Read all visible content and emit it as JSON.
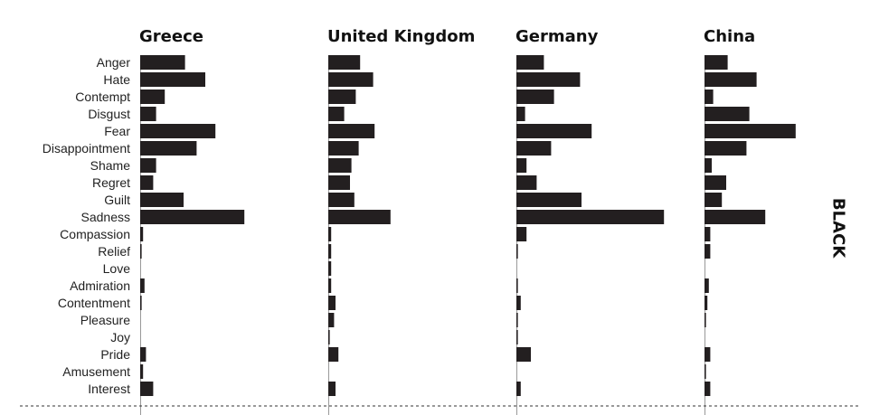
{
  "chart_data": {
    "type": "bar",
    "orientation": "horizontal",
    "side_label": "BLACK",
    "categories": [
      "Anger",
      "Hate",
      "Contempt",
      "Disgust",
      "Fear",
      "Disappointment",
      "Shame",
      "Regret",
      "Guilt",
      "Sadness",
      "Compassion",
      "Relief",
      "Love",
      "Admiration",
      "Contentment",
      "Pleasure",
      "Joy",
      "Pride",
      "Amusement",
      "Interest"
    ],
    "series": [
      {
        "name": "Greece",
        "values": [
          0.31,
          0.45,
          0.17,
          0.11,
          0.52,
          0.39,
          0.11,
          0.09,
          0.3,
          0.72,
          0.02,
          0.01,
          0.0,
          0.03,
          0.01,
          0.0,
          0.0,
          0.04,
          0.02,
          0.09
        ]
      },
      {
        "name": "United Kingdom",
        "values": [
          0.22,
          0.31,
          0.19,
          0.11,
          0.32,
          0.21,
          0.16,
          0.15,
          0.18,
          0.43,
          0.02,
          0.02,
          0.02,
          0.02,
          0.05,
          0.04,
          0.01,
          0.07,
          0.0,
          0.05
        ]
      },
      {
        "name": "Germany",
        "values": [
          0.19,
          0.44,
          0.26,
          0.06,
          0.52,
          0.24,
          0.07,
          0.14,
          0.45,
          1.02,
          0.07,
          0.01,
          0.0,
          0.01,
          0.03,
          0.01,
          0.01,
          0.1,
          0.0,
          0.03
        ]
      },
      {
        "name": "China",
        "values": [
          0.16,
          0.36,
          0.06,
          0.31,
          0.63,
          0.29,
          0.05,
          0.15,
          0.12,
          0.42,
          0.04,
          0.04,
          0.0,
          0.03,
          0.02,
          0.01,
          0.0,
          0.04,
          0.01,
          0.04
        ]
      }
    ],
    "xlim": [
      0,
      1
    ],
    "grid": false,
    "legend": "none",
    "colors": {
      "bar": "#231f20",
      "axis": "#999999",
      "text": "#222222",
      "baseline": "#333333"
    }
  }
}
